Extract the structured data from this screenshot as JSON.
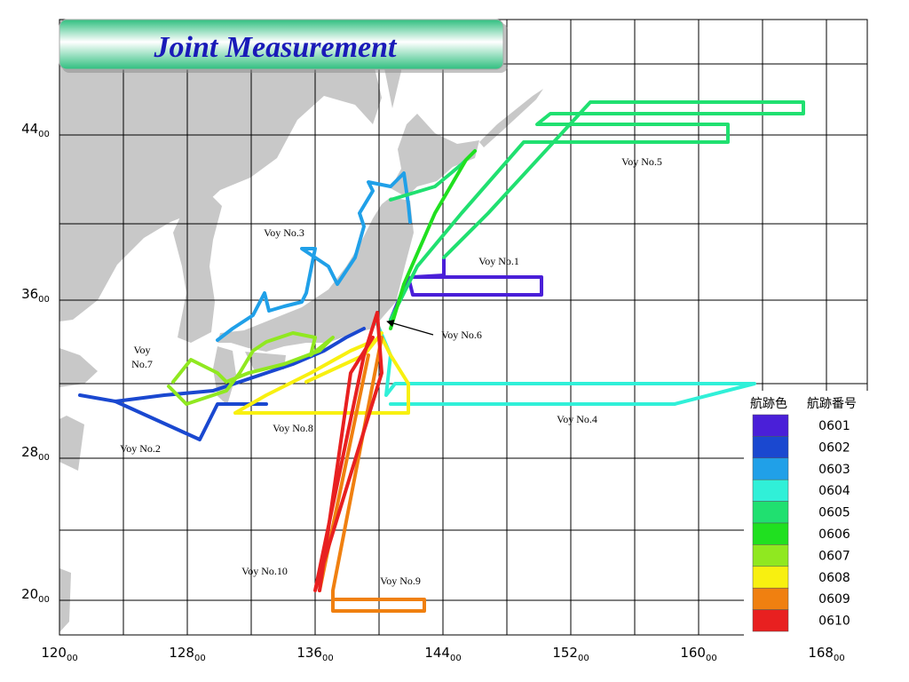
{
  "title": "Joint Measurement",
  "longitude_ticks": [
    {
      "deg": "120",
      "min": "00"
    },
    {
      "deg": "128",
      "min": "00"
    },
    {
      "deg": "136",
      "min": "00"
    },
    {
      "deg": "144",
      "min": "00"
    },
    {
      "deg": "152",
      "min": "00"
    },
    {
      "deg": "160",
      "min": "00"
    },
    {
      "deg": "168",
      "min": "00"
    }
  ],
  "latitude_ticks": [
    {
      "deg": "44",
      "min": "00"
    },
    {
      "deg": "36",
      "min": "00"
    },
    {
      "deg": "28",
      "min": "00"
    },
    {
      "deg": "20",
      "min": "00"
    }
  ],
  "track_labels": [
    [
      "Voy No.5"
    ],
    [
      "Voy No.3"
    ],
    [
      "Voy No.1"
    ],
    [
      "Voy No.6"
    ],
    [
      "Voy",
      "No.7"
    ],
    [
      "Voy No.4"
    ],
    [
      "Voy No.8"
    ],
    [
      "Voy No.2"
    ],
    [
      "Voy No.10"
    ],
    [
      "Voy No.9"
    ]
  ],
  "legend": {
    "headers": [
      "航跡色",
      "航跡番号"
    ],
    "items": [
      {
        "color": "#4a1fd8",
        "label": "0601"
      },
      {
        "color": "#1a48d0",
        "label": "0602"
      },
      {
        "color": "#20a0e8",
        "label": "0603"
      },
      {
        "color": "#30f0d8",
        "label": "0604"
      },
      {
        "color": "#20e070",
        "label": "0605"
      },
      {
        "color": "#20e020",
        "label": "0606"
      },
      {
        "color": "#90e820",
        "label": "0607"
      },
      {
        "color": "#f8f010",
        "label": "0608"
      },
      {
        "color": "#f08010",
        "label": "0609"
      },
      {
        "color": "#e82020",
        "label": "0610"
      }
    ]
  }
}
